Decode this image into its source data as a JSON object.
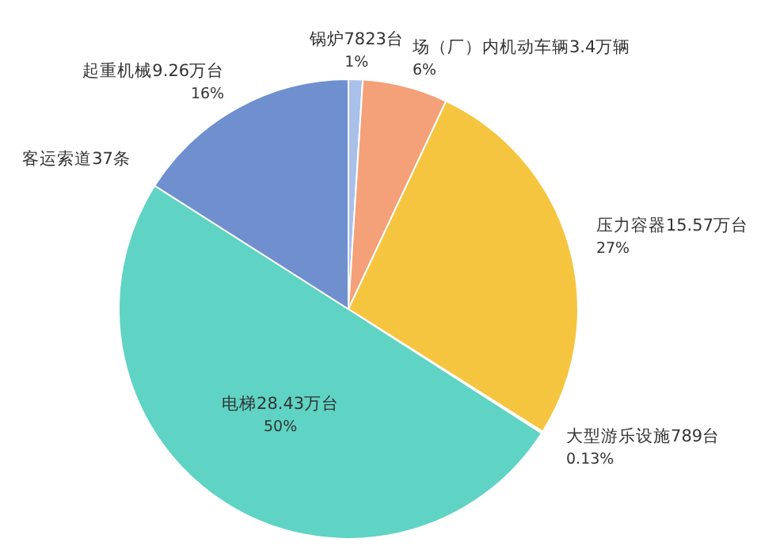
{
  "chart_data": {
    "type": "pie",
    "categories": [
      "锅炉7823台",
      "场（厂）内机动车辆3.4万辆",
      "压力容器15.57万台",
      "大型游乐设施789台",
      "电梯28.43万台",
      "客运索道37条",
      "起重机械9.26万台"
    ],
    "values": [
      1,
      6,
      27,
      0.13,
      50,
      null,
      16
    ],
    "colors": [
      "#a9c0e8",
      "#f4a078",
      "#f6c540",
      "#c8d9a0",
      "#5fd3c4",
      "#7fb0d8",
      "#6f8fcf"
    ],
    "value_labels": [
      "1%",
      "6%",
      "27%",
      "0.13%",
      "50%",
      null,
      "16%"
    ]
  }
}
